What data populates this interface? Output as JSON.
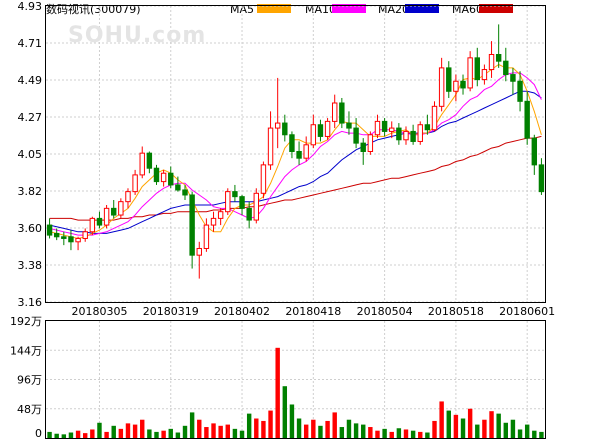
{
  "chart_data": {
    "type": "candlestick",
    "title": "数码视讯(300079)",
    "watermark": "SOHU.com",
    "colors": {
      "up": "#ff0000",
      "down": "#008000",
      "ma5": "#ffa500",
      "ma10": "#ff00ff",
      "ma20": "#0000cc",
      "ma60": "#cc0000"
    },
    "legend": [
      {
        "name": "MA5",
        "color": "#ffa500"
      },
      {
        "name": "MA10",
        "color": "#ff00ff"
      },
      {
        "name": "MA20",
        "color": "#0000cc"
      },
      {
        "name": "MA60",
        "color": "#cc0000"
      }
    ],
    "price_ticks": [
      "4.93",
      "4.71",
      "4.49",
      "4.27",
      "4.05",
      "3.82",
      "3.60",
      "3.38",
      "3.16"
    ],
    "price_range": [
      3.16,
      4.93
    ],
    "date_ticks": [
      {
        "label": "20180305",
        "index": 7
      },
      {
        "label": "20180319",
        "index": 17
      },
      {
        "label": "20180402",
        "index": 27
      },
      {
        "label": "20180418",
        "index": 37
      },
      {
        "label": "20180504",
        "index": 47
      },
      {
        "label": "20180518",
        "index": 57
      },
      {
        "label": "20180601",
        "index": 67
      }
    ],
    "volume_ticks": [
      "192万",
      "144万",
      "96万",
      "48万",
      "0"
    ],
    "volume_max": 192,
    "ohlc": [
      [
        3.62,
        3.66,
        3.54,
        3.56
      ],
      [
        3.57,
        3.6,
        3.53,
        3.55
      ],
      [
        3.55,
        3.58,
        3.5,
        3.54
      ],
      [
        3.55,
        3.59,
        3.47,
        3.52
      ],
      [
        3.52,
        3.55,
        3.47,
        3.54
      ],
      [
        3.54,
        3.6,
        3.52,
        3.58
      ],
      [
        3.58,
        3.67,
        3.56,
        3.66
      ],
      [
        3.66,
        3.7,
        3.6,
        3.62
      ],
      [
        3.62,
        3.74,
        3.6,
        3.72
      ],
      [
        3.72,
        3.77,
        3.66,
        3.68
      ],
      [
        3.68,
        3.78,
        3.66,
        3.76
      ],
      [
        3.76,
        3.84,
        3.72,
        3.82
      ],
      [
        3.82,
        3.95,
        3.8,
        3.92
      ],
      [
        3.92,
        4.09,
        3.9,
        4.05
      ],
      [
        4.05,
        4.06,
        3.93,
        3.96
      ],
      [
        3.96,
        3.98,
        3.86,
        3.88
      ],
      [
        3.88,
        3.95,
        3.85,
        3.93
      ],
      [
        3.93,
        3.97,
        3.84,
        3.86
      ],
      [
        3.86,
        3.91,
        3.82,
        3.83
      ],
      [
        3.83,
        3.86,
        3.77,
        3.8
      ],
      [
        3.8,
        3.82,
        3.36,
        3.44
      ],
      [
        3.44,
        3.52,
        3.3,
        3.48
      ],
      [
        3.48,
        3.66,
        3.46,
        3.62
      ],
      [
        3.62,
        3.7,
        3.58,
        3.66
      ],
      [
        3.66,
        3.72,
        3.62,
        3.7
      ],
      [
        3.7,
        3.84,
        3.68,
        3.82
      ],
      [
        3.82,
        3.86,
        3.76,
        3.79
      ],
      [
        3.79,
        3.8,
        3.68,
        3.72
      ],
      [
        3.72,
        3.76,
        3.6,
        3.65
      ],
      [
        3.65,
        3.84,
        3.63,
        3.81
      ],
      [
        3.81,
        4.0,
        3.78,
        3.98
      ],
      [
        3.98,
        4.3,
        3.95,
        4.2
      ],
      [
        4.2,
        4.5,
        4.08,
        4.23
      ],
      [
        4.23,
        4.28,
        4.12,
        4.16
      ],
      [
        4.16,
        4.18,
        4.02,
        4.06
      ],
      [
        4.06,
        4.12,
        3.98,
        4.02
      ],
      [
        4.02,
        4.15,
        4.0,
        4.1
      ],
      [
        4.1,
        4.28,
        4.08,
        4.22
      ],
      [
        4.22,
        4.25,
        4.12,
        4.15
      ],
      [
        4.15,
        4.26,
        4.13,
        4.24
      ],
      [
        4.24,
        4.4,
        4.2,
        4.35
      ],
      [
        4.35,
        4.38,
        4.2,
        4.23
      ],
      [
        4.23,
        4.3,
        4.16,
        4.2
      ],
      [
        4.2,
        4.26,
        4.08,
        4.11
      ],
      [
        4.11,
        4.14,
        3.98,
        4.06
      ],
      [
        4.06,
        4.18,
        4.04,
        4.16
      ],
      [
        4.16,
        4.28,
        4.14,
        4.24
      ],
      [
        4.24,
        4.26,
        4.15,
        4.18
      ],
      [
        4.18,
        4.24,
        4.14,
        4.2
      ],
      [
        4.2,
        4.23,
        4.1,
        4.13
      ],
      [
        4.13,
        4.21,
        4.1,
        4.18
      ],
      [
        4.18,
        4.22,
        4.1,
        4.12
      ],
      [
        4.12,
        4.24,
        4.1,
        4.22
      ],
      [
        4.22,
        4.28,
        4.16,
        4.19
      ],
      [
        4.19,
        4.36,
        4.18,
        4.33
      ],
      [
        4.33,
        4.62,
        4.3,
        4.56
      ],
      [
        4.56,
        4.6,
        4.38,
        4.42
      ],
      [
        4.42,
        4.52,
        4.36,
        4.48
      ],
      [
        4.48,
        4.52,
        4.4,
        4.44
      ],
      [
        4.44,
        4.66,
        4.42,
        4.62
      ],
      [
        4.62,
        4.68,
        4.45,
        4.49
      ],
      [
        4.49,
        4.58,
        4.46,
        4.55
      ],
      [
        4.55,
        4.72,
        4.5,
        4.64
      ],
      [
        4.64,
        4.82,
        4.56,
        4.6
      ],
      [
        4.6,
        4.68,
        4.48,
        4.52
      ],
      [
        4.52,
        4.56,
        4.4,
        4.48
      ],
      [
        4.48,
        4.54,
        4.3,
        4.36
      ],
      [
        4.36,
        4.42,
        4.1,
        4.14
      ],
      [
        4.14,
        4.16,
        3.92,
        3.98
      ],
      [
        3.98,
        4.02,
        3.8,
        3.82
      ]
    ],
    "volume": [
      10,
      7,
      6,
      9,
      12,
      8,
      14,
      25,
      10,
      20,
      15,
      24,
      22,
      30,
      14,
      10,
      12,
      15,
      9,
      20,
      42,
      30,
      18,
      24,
      20,
      22,
      15,
      12,
      40,
      32,
      28,
      45,
      148,
      85,
      55,
      32,
      22,
      30,
      20,
      28,
      42,
      18,
      30,
      24,
      22,
      18,
      12,
      15,
      10,
      16,
      14,
      12,
      10,
      9,
      28,
      60,
      45,
      38,
      32,
      48,
      22,
      30,
      44,
      40,
      25,
      30,
      14,
      22,
      12,
      10
    ],
    "ma5": [
      3.58,
      3.57,
      3.56,
      3.55,
      3.54,
      3.55,
      3.57,
      3.59,
      3.62,
      3.66,
      3.69,
      3.72,
      3.78,
      3.85,
      3.89,
      3.93,
      3.95,
      3.93,
      3.89,
      3.86,
      3.77,
      3.68,
      3.61,
      3.58,
      3.58,
      3.66,
      3.72,
      3.74,
      3.74,
      3.76,
      3.79,
      3.87,
      3.97,
      4.08,
      4.13,
      4.13,
      4.11,
      4.11,
      4.11,
      4.13,
      4.19,
      4.24,
      4.23,
      4.23,
      4.19,
      4.15,
      4.15,
      4.15,
      4.17,
      4.18,
      4.19,
      4.16,
      4.17,
      4.17,
      4.21,
      4.28,
      4.34,
      4.4,
      4.49,
      4.5,
      4.49,
      4.52,
      4.55,
      4.58,
      4.56,
      4.56,
      4.52,
      4.42,
      4.3,
      4.16
    ],
    "ma10": [
      3.6,
      3.59,
      3.58,
      3.57,
      3.56,
      3.56,
      3.56,
      3.57,
      3.58,
      3.6,
      3.62,
      3.64,
      3.68,
      3.73,
      3.77,
      3.81,
      3.84,
      3.86,
      3.87,
      3.87,
      3.83,
      3.8,
      3.77,
      3.73,
      3.72,
      3.72,
      3.7,
      3.68,
      3.66,
      3.67,
      3.72,
      3.79,
      3.85,
      3.91,
      3.95,
      3.98,
      4.0,
      4.04,
      4.09,
      4.12,
      4.16,
      4.18,
      4.17,
      4.17,
      4.16,
      4.16,
      4.19,
      4.19,
      4.19,
      4.18,
      4.17,
      4.16,
      4.16,
      4.17,
      4.19,
      4.23,
      4.25,
      4.28,
      4.33,
      4.37,
      4.39,
      4.43,
      4.45,
      4.49,
      4.52,
      4.53,
      4.53,
      4.5,
      4.46,
      4.37
    ],
    "ma20": [
      3.62,
      3.61,
      3.6,
      3.59,
      3.58,
      3.58,
      3.57,
      3.57,
      3.57,
      3.58,
      3.59,
      3.6,
      3.62,
      3.64,
      3.66,
      3.68,
      3.7,
      3.72,
      3.73,
      3.74,
      3.74,
      3.74,
      3.74,
      3.74,
      3.75,
      3.76,
      3.76,
      3.76,
      3.76,
      3.76,
      3.77,
      3.78,
      3.79,
      3.81,
      3.83,
      3.85,
      3.86,
      3.88,
      3.91,
      3.93,
      3.97,
      4.01,
      4.04,
      4.07,
      4.09,
      4.11,
      4.13,
      4.14,
      4.15,
      4.16,
      4.17,
      4.17,
      4.17,
      4.17,
      4.18,
      4.21,
      4.23,
      4.24,
      4.26,
      4.28,
      4.3,
      4.32,
      4.34,
      4.36,
      4.38,
      4.4,
      4.42,
      4.42,
      4.41,
      4.38
    ],
    "ma60": [
      3.66,
      3.66,
      3.66,
      3.66,
      3.65,
      3.65,
      3.65,
      3.65,
      3.65,
      3.65,
      3.66,
      3.66,
      3.67,
      3.67,
      3.68,
      3.68,
      3.69,
      3.69,
      3.7,
      3.7,
      3.7,
      3.7,
      3.7,
      3.71,
      3.71,
      3.72,
      3.72,
      3.72,
      3.73,
      3.73,
      3.74,
      3.75,
      3.76,
      3.77,
      3.77,
      3.78,
      3.79,
      3.8,
      3.81,
      3.82,
      3.83,
      3.84,
      3.85,
      3.86,
      3.87,
      3.87,
      3.88,
      3.89,
      3.9,
      3.9,
      3.91,
      3.92,
      3.93,
      3.94,
      3.95,
      3.97,
      3.98,
      4.0,
      4.01,
      4.03,
      4.04,
      4.06,
      4.08,
      4.09,
      4.11,
      4.12,
      4.13,
      4.14,
      4.14,
      4.15
    ]
  }
}
